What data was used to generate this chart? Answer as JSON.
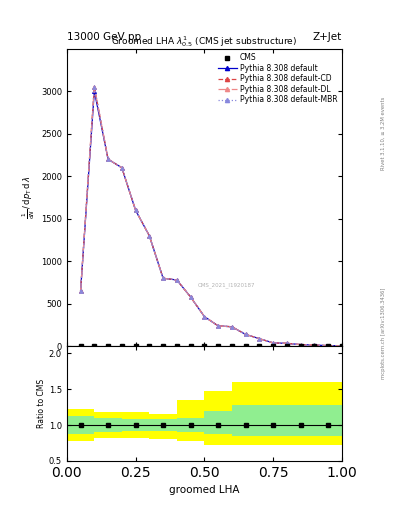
{
  "title_top": "13000 GeV pp",
  "title_right": "Z+Jet",
  "plot_title": "Groomed LHA $\\lambda^{1}_{0.5}$ (CMS jet substructure)",
  "xlabel": "groomed LHA",
  "ylabel_main": "$\\frac{1}{\\mathrm{d}N}\\,/\\,\\mathrm{d}p_{\\mathrm{T}}\\,\\mathrm{d}\\,\\lambda$",
  "ylabel_ratio": "Ratio to CMS",
  "right_label_top": "Rivet 3.1.10, ≥ 3.2M events",
  "right_label_bottom": "mcplots.cern.ch [arXiv:1306.3436]",
  "watermark": "CMS_2021_I1920187",
  "x_main": [
    0.05,
    0.1,
    0.15,
    0.2,
    0.25,
    0.3,
    0.35,
    0.4,
    0.45,
    0.5,
    0.55,
    0.6,
    0.65,
    0.7,
    0.75,
    0.8,
    0.85,
    0.9,
    0.95,
    1.0
  ],
  "y_default": [
    650,
    3000,
    2200,
    2100,
    1600,
    1300,
    800,
    780,
    580,
    350,
    240,
    230,
    140,
    90,
    40,
    35,
    20,
    15,
    8,
    7
  ],
  "y_cd": [
    650,
    3050,
    2200,
    2100,
    1600,
    1300,
    800,
    780,
    580,
    350,
    240,
    230,
    140,
    90,
    40,
    35,
    20,
    15,
    8,
    7
  ],
  "y_dl": [
    650,
    3050,
    2200,
    2100,
    1600,
    1300,
    800,
    780,
    580,
    350,
    240,
    230,
    140,
    90,
    40,
    35,
    20,
    15,
    8,
    7
  ],
  "y_mbr": [
    650,
    3050,
    2200,
    2100,
    1600,
    1300,
    800,
    780,
    580,
    350,
    240,
    230,
    140,
    90,
    40,
    35,
    20,
    15,
    8,
    7
  ],
  "cms_x_main": [
    0.05,
    0.1,
    0.15,
    0.2,
    0.25,
    0.3,
    0.35,
    0.4,
    0.45,
    0.5,
    0.55,
    0.6,
    0.65,
    0.7,
    0.75,
    0.8,
    0.85,
    0.9,
    0.95,
    1.0
  ],
  "ratio_edges": [
    0.0,
    0.1,
    0.2,
    0.3,
    0.4,
    0.5,
    0.6,
    0.7,
    0.8,
    0.9,
    1.0
  ],
  "ratio_green_lo": [
    0.88,
    0.9,
    0.92,
    0.92,
    0.9,
    0.88,
    0.85,
    0.85,
    0.85,
    0.85
  ],
  "ratio_green_hi": [
    1.12,
    1.1,
    1.08,
    1.08,
    1.1,
    1.2,
    1.28,
    1.28,
    1.28,
    1.28
  ],
  "ratio_yellow_lo": [
    0.78,
    0.82,
    0.82,
    0.8,
    0.77,
    0.72,
    0.72,
    0.72,
    0.72,
    0.72
  ],
  "ratio_yellow_hi": [
    1.22,
    1.18,
    1.18,
    1.16,
    1.35,
    1.48,
    1.6,
    1.6,
    1.6,
    1.6
  ],
  "cms_ratio_x": [
    0.05,
    0.15,
    0.25,
    0.35,
    0.45,
    0.55,
    0.65,
    0.75,
    0.85,
    0.95
  ],
  "color_default": "#0000cc",
  "color_cd": "#dd4444",
  "color_dl": "#ee8888",
  "color_mbr": "#8888dd",
  "ylim_main": [
    0,
    3500
  ],
  "yticks_main": [
    0,
    500,
    1000,
    1500,
    2000,
    2500,
    3000
  ],
  "ylim_ratio": [
    0.5,
    2.1
  ],
  "yticks_ratio": [
    0.5,
    1.0,
    1.5,
    2.0
  ],
  "xlim": [
    0.0,
    1.0
  ],
  "xticks": [
    0.0,
    0.25,
    0.5,
    0.75,
    1.0
  ]
}
